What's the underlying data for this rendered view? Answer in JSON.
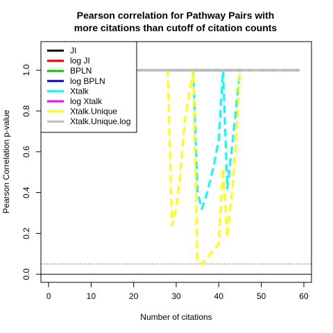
{
  "chart_data": {
    "type": "line",
    "title_lines": [
      "Pearson correlation for Pathway Pairs with",
      "more citations than cutoff of citation counts"
    ],
    "xlabel": "Number of citations",
    "ylabel": "Pearson Correlation p-value",
    "xlim": [
      -1.8,
      61.8
    ],
    "ylim": [
      -0.04,
      1.14
    ],
    "xticks": [
      0,
      10,
      20,
      30,
      40,
      50,
      60
    ],
    "xtick_labels": [
      "0",
      "10",
      "20",
      "30",
      "40",
      "50",
      "60"
    ],
    "yticks": [
      0.0,
      0.2,
      0.4,
      0.6,
      0.8,
      1.0
    ],
    "ytick_labels": [
      "0.0",
      "0.2",
      "0.4",
      "0.6",
      "0.8",
      "1.0"
    ],
    "reference_lines": [
      {
        "y": 0.0,
        "style": "solid",
        "color": "#000000"
      },
      {
        "y": 0.05,
        "style": "dotted",
        "color": "#444444"
      }
    ],
    "legend_position": "top-left",
    "series": [
      {
        "name": "JI",
        "color": "#000000",
        "dash": "solid",
        "x": [
          0,
          59
        ],
        "y": [
          1.0,
          1.0
        ]
      },
      {
        "name": "log JI",
        "color": "#ff0000",
        "dash": "dashed",
        "x": [
          0,
          59
        ],
        "y": [
          1.0,
          1.0
        ]
      },
      {
        "name": "BPLN",
        "color": "#00cd00",
        "dash": "dashed",
        "x": [
          0,
          59
        ],
        "y": [
          1.0,
          1.0
        ]
      },
      {
        "name": "log BPLN",
        "color": "#0000ff",
        "dash": "dashed",
        "x": [
          0,
          59
        ],
        "y": [
          1.0,
          1.0
        ]
      },
      {
        "name": "Xtalk",
        "color": "#00ffff",
        "dash": "dashed",
        "x": [
          0,
          33,
          34,
          35,
          36,
          37,
          38,
          39,
          40,
          41,
          42,
          43,
          44,
          45,
          46,
          59
        ],
        "y": [
          1.0,
          1.0,
          1.0,
          0.4,
          0.32,
          0.38,
          0.46,
          0.55,
          0.66,
          1.0,
          0.42,
          0.6,
          0.8,
          1.0,
          1.0,
          1.0
        ]
      },
      {
        "name": "log Xtalk",
        "color": "#ff00ff",
        "dash": "dashed",
        "x": [
          0,
          59
        ],
        "y": [
          1.0,
          1.0
        ]
      },
      {
        "name": "Xtalk.Unique",
        "color": "#ffff00",
        "dash": "dashed",
        "x": [
          0,
          28,
          29,
          30,
          31,
          32,
          33,
          34,
          35,
          36,
          37,
          38,
          39,
          40,
          41,
          42,
          43,
          44,
          45,
          46,
          59
        ],
        "y": [
          1.0,
          1.0,
          0.24,
          0.32,
          0.5,
          0.75,
          0.88,
          1.0,
          0.06,
          0.05,
          0.07,
          0.1,
          0.12,
          0.15,
          0.52,
          0.18,
          0.38,
          0.62,
          1.0,
          1.0,
          1.0
        ]
      },
      {
        "name": "Xtalk.Unique.log",
        "color": "#bebebe",
        "dash": "solid",
        "x": [
          0,
          59
        ],
        "y": [
          1.0,
          1.0
        ]
      }
    ]
  }
}
